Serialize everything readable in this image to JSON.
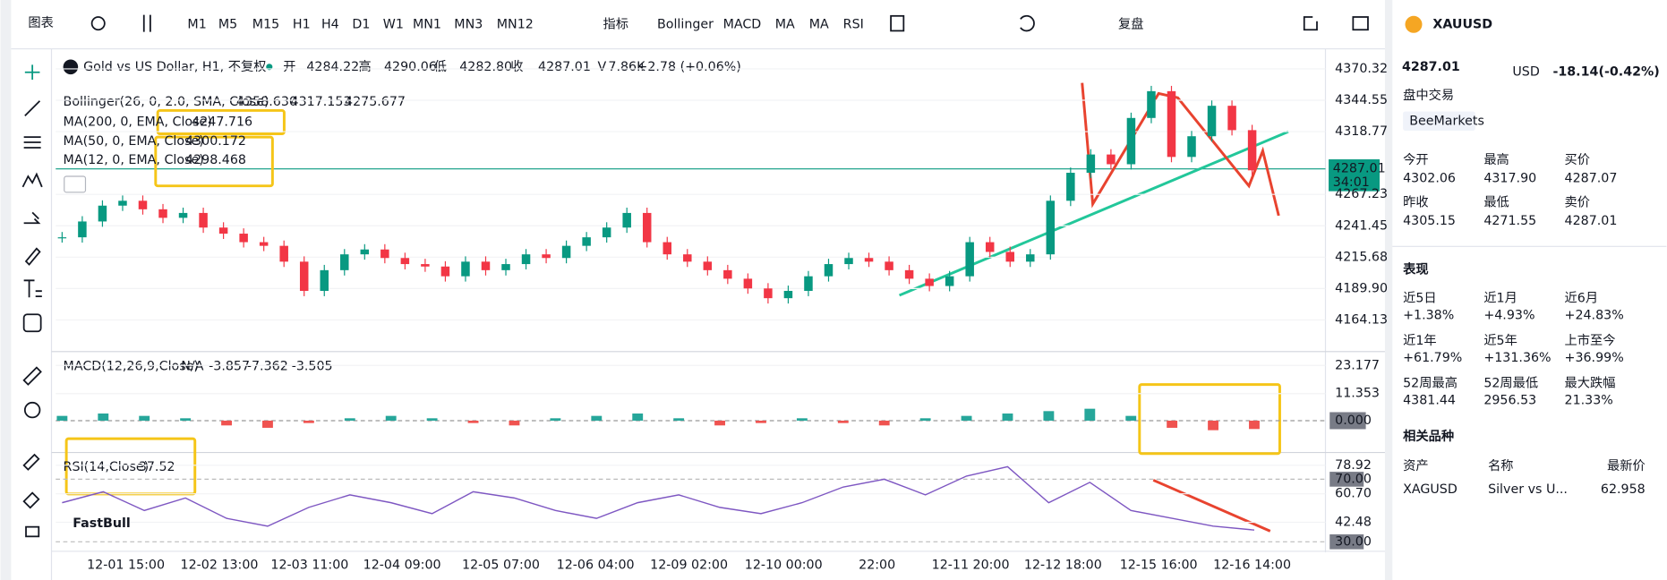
{
  "toolbar": {
    "chart_button": "图表",
    "timeframes": [
      "M1",
      "M5",
      "M15",
      "H1",
      "H4",
      "D1",
      "W1",
      "MN1",
      "MN3",
      "MN12"
    ],
    "indicators_button": "指标",
    "indicator_shortcuts": [
      "Bollinger",
      "MACD",
      "MA",
      "MA",
      "RSI"
    ],
    "replay": "复盘"
  },
  "legend": {
    "title": "Gold vs US Dollar, H1, 不复权",
    "ohlc": [
      {
        "label": "开",
        "value": "4284.22"
      },
      {
        "label": "高",
        "value": "4290.06"
      },
      {
        "label": "低",
        "value": "4282.80"
      },
      {
        "label": "收",
        "value": "4287.01"
      },
      {
        "label": "V",
        "value": "7.86K"
      }
    ],
    "change": "+2.78 (+0.06%)"
  },
  "indicators": {
    "bollinger": {
      "label": "Bollinger(26, 0, 2.0, SMA, Close)",
      "values": [
        "4358.630",
        "4317.153",
        "4275.677"
      ]
    },
    "ma200": {
      "label": "MA(200, 0, EMA, Close)",
      "value": "4247.716"
    },
    "ma50": {
      "label": "MA(50, 0, EMA, Close)",
      "value": "4300.172"
    },
    "ma12": {
      "label": "MA(12, 0, EMA, Close)",
      "value": "4298.468"
    }
  },
  "price_chart": {
    "ylim": [
      4139,
      4385
    ],
    "yticks": [
      4370.32,
      4344.55,
      4318.77,
      4267.23,
      4241.45,
      4215.68,
      {
        "value": 4189.9,
        "label": "4189.90"
      },
      4164.13
    ],
    "current_price": "4287.01",
    "countdown": "34:01",
    "closes": [
      4232,
      4245,
      4258,
      4262,
      4255,
      4248,
      4252,
      4240,
      4235,
      4228,
      4225,
      4212,
      4188,
      4205,
      4218,
      4222,
      4215,
      4210,
      4208,
      4200,
      4212,
      4205,
      4210,
      4218,
      4215,
      4225,
      4232,
      4240,
      4252,
      4228,
      4218,
      4212,
      4205,
      4198,
      4190,
      4182,
      4188,
      4200,
      4210,
      4215,
      4212,
      4205,
      4198,
      4192,
      4200,
      4228,
      4220,
      4212,
      4218,
      4262,
      4285,
      4300,
      4292,
      4330,
      4352,
      4298,
      4315,
      4340,
      4320,
      4287
    ]
  },
  "macd": {
    "label": "MACD(12,26,9,Close)",
    "na": "N/A",
    "values": [
      "-3.857",
      "-7.362",
      "-3.505"
    ],
    "ylim": [
      -12.48,
      27.63
    ],
    "yticks": [
      23.177,
      11.353,
      {
        "value": 0,
        "label": "0.000"
      }
    ],
    "histogram": [
      2,
      3,
      2,
      1,
      -2,
      -3,
      -1,
      1,
      2,
      1,
      -1,
      -2,
      1,
      2,
      3,
      1,
      -2,
      -1,
      1,
      -1,
      -2,
      1,
      2,
      3,
      4,
      5,
      2,
      -3,
      -4,
      -3.505
    ]
  },
  "rsi": {
    "label": "RSI(14,Close)",
    "value": "37.52",
    "ylim": [
      24.6,
      85.7
    ],
    "yticks": [
      78.92,
      {
        "value": 70,
        "label": "70.00"
      },
      {
        "value": 60.7,
        "label": "60.70"
      },
      42.48,
      {
        "value": 30,
        "label": "30.00"
      }
    ],
    "values": [
      55,
      62,
      50,
      58,
      45,
      40,
      52,
      60,
      55,
      48,
      62,
      58,
      50,
      45,
      55,
      60,
      52,
      48,
      55,
      65,
      70,
      60,
      72,
      78,
      55,
      68,
      50,
      45,
      40,
      37.52
    ]
  },
  "x_labels": [
    "12-01 15:00",
    "12-02 13:00",
    "12-03 11:00",
    "12-04 09:00",
    "12-05 07:00",
    "12-06 04:00",
    "12-09 02:00",
    "12-10 00:00",
    "22:00",
    "12-11 20:00",
    "12-12 18:00",
    "12-15 16:00",
    "12-16 14:00"
  ],
  "watermark": "FastBull",
  "sidebar": {
    "symbol": "XAUUSD",
    "price": "4287.01",
    "currency": "USD",
    "change": "-18.14",
    "change_pct": "(-0.42%)",
    "session": "盘中交易",
    "broker": "BeeMarkets",
    "stats": [
      {
        "label": "今开",
        "value": "4302.06"
      },
      {
        "label": "最高",
        "value": "4317.90"
      },
      {
        "label": "买价",
        "value": "4287.07"
      },
      {
        "label": "昨收",
        "value": "4305.15"
      },
      {
        "label": "最低",
        "value": "4271.55"
      },
      {
        "label": "卖价",
        "value": "4287.01"
      }
    ],
    "performance_title": "表现",
    "performance": [
      {
        "label": "近5日",
        "value": "+1.38%"
      },
      {
        "label": "近1月",
        "value": "+4.93%"
      },
      {
        "label": "近6月",
        "value": "+24.83%"
      },
      {
        "label": "近1年",
        "value": "+61.79%"
      },
      {
        "label": "近5年",
        "value": "+131.36%"
      },
      {
        "label": "上市至今",
        "value": "+36.99%"
      },
      {
        "label": "52周最高",
        "value": "4381.44"
      },
      {
        "label": "52周最低",
        "value": "2956.53"
      },
      {
        "label": "最大跌幅",
        "value": "21.33%"
      }
    ],
    "related_title": "相关品种",
    "related_headers": [
      "资产",
      "名称",
      "最新价"
    ],
    "related_rows": [
      [
        "XAGUSD",
        "Silver vs U...",
        "62.958"
      ]
    ]
  }
}
